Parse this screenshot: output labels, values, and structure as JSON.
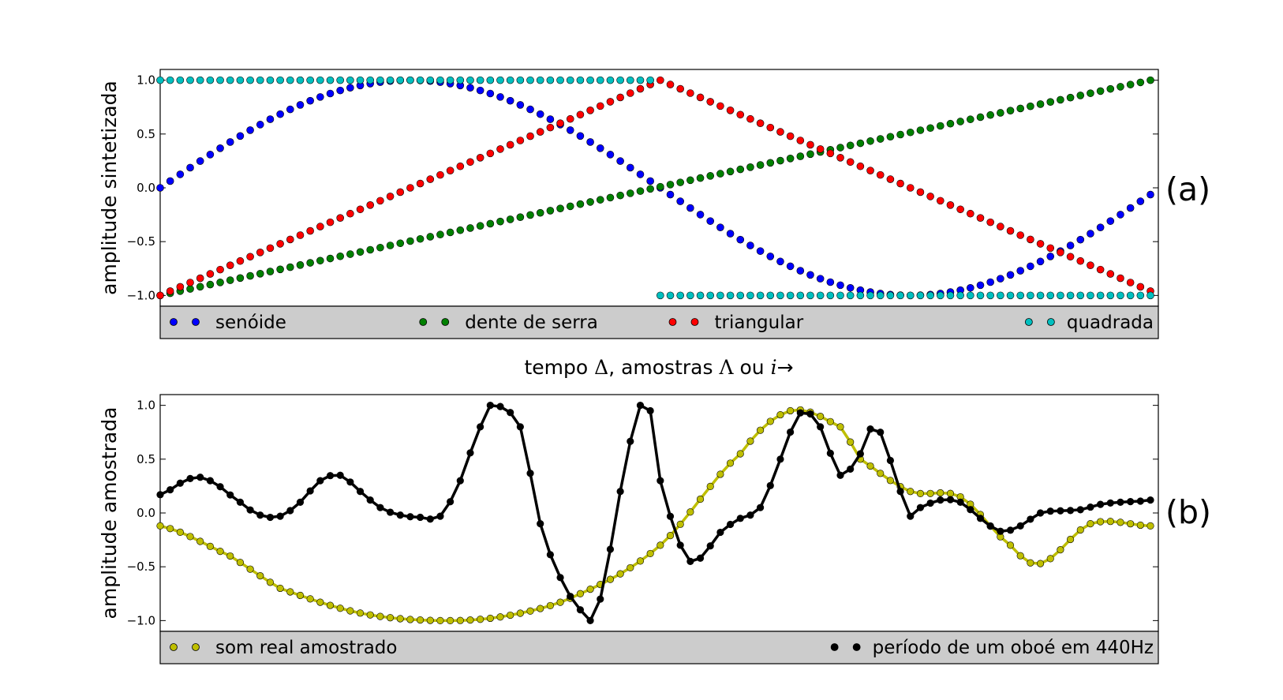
{
  "xlabel": {
    "prefix": "tempo",
    "delta_symbol": "Δ",
    "middle": ", amostras",
    "lambda_symbol": "Λ",
    "connector": "ou",
    "i_symbol": "i",
    "arrow": "→"
  },
  "chart_data": [
    {
      "type": "scatter",
      "panel_label": "(a)",
      "ylabel": "amplitude sintetizada",
      "ylim": [
        -1.1,
        1.1
      ],
      "yticks": [
        1.0,
        0.5,
        0.0,
        -0.5,
        -1.0
      ],
      "ytick_labels": [
        "1.0",
        "0.5",
        "0.0",
        "−0.5",
        "−1.0"
      ],
      "x": {
        "start": 0,
        "count": 100,
        "step": 1
      },
      "grid": false,
      "legend": {
        "placement": "below",
        "columns": 4
      },
      "series": [
        {
          "name": "senóide",
          "color": "#0000ff",
          "shape": "sine",
          "cycles": 1
        },
        {
          "name": "dente de serra",
          "color": "#008000",
          "shape": "sawtooth",
          "from": -1,
          "to": 1
        },
        {
          "name": "triangular",
          "color": "#ff0000",
          "shape": "triangle",
          "from": -1,
          "peak": 1
        },
        {
          "name": "quadrada",
          "color": "#00bfbf",
          "shape": "square",
          "high": 1,
          "low": -1
        }
      ]
    },
    {
      "type": "line",
      "panel_label": "(b)",
      "ylabel": "amplitude amostrada",
      "ylim": [
        -1.1,
        1.1
      ],
      "yticks": [
        1.0,
        0.5,
        0.0,
        -0.5,
        -1.0
      ],
      "ytick_labels": [
        "1.0",
        "0.5",
        "0.0",
        "−0.5",
        "−1.0"
      ],
      "grid": false,
      "legend": {
        "placement": "below",
        "columns": 2
      },
      "series": [
        {
          "name": "som real amostrado",
          "color": "#bfbf00",
          "x": [
            0,
            7,
            12,
            20,
            28,
            35,
            42,
            50,
            58,
            63,
            68,
            70,
            75,
            80,
            85,
            88,
            93,
            99
          ],
          "y": [
            -0.12,
            -0.4,
            -0.7,
            -0.93,
            -1.0,
            -0.95,
            -0.75,
            -0.3,
            0.55,
            0.95,
            0.8,
            0.5,
            0.2,
            0.15,
            -0.3,
            -0.47,
            -0.1,
            -0.12
          ]
        },
        {
          "name": "período de um oboé em 440Hz",
          "color": "#000000",
          "x": [
            0,
            3,
            5,
            8,
            10,
            12,
            14,
            16,
            18,
            20,
            22,
            24,
            26,
            28,
            30,
            32,
            33,
            36,
            38,
            40,
            42,
            43,
            44,
            46,
            48,
            49,
            50,
            52,
            53,
            54,
            56,
            58,
            60,
            62,
            64,
            66,
            68,
            70,
            71,
            72,
            74,
            75,
            76,
            78,
            80,
            82,
            84,
            86,
            88,
            90,
            92,
            94,
            96,
            98,
            99
          ],
          "y": [
            0.17,
            0.32,
            0.3,
            0.1,
            -0.02,
            -0.03,
            0.1,
            0.3,
            0.35,
            0.2,
            0.05,
            -0.02,
            -0.04,
            -0.03,
            0.3,
            0.8,
            1.0,
            0.8,
            -0.1,
            -0.6,
            -0.9,
            -1.0,
            -0.8,
            0.2,
            1.0,
            0.95,
            0.3,
            -0.3,
            -0.45,
            -0.42,
            -0.18,
            -0.05,
            0.05,
            0.5,
            0.93,
            0.8,
            0.35,
            0.55,
            0.78,
            0.75,
            0.2,
            -0.03,
            0.05,
            0.12,
            0.1,
            -0.05,
            -0.17,
            -0.12,
            0.0,
            0.02,
            0.03,
            0.08,
            0.1,
            0.11,
            0.12
          ]
        }
      ]
    }
  ]
}
